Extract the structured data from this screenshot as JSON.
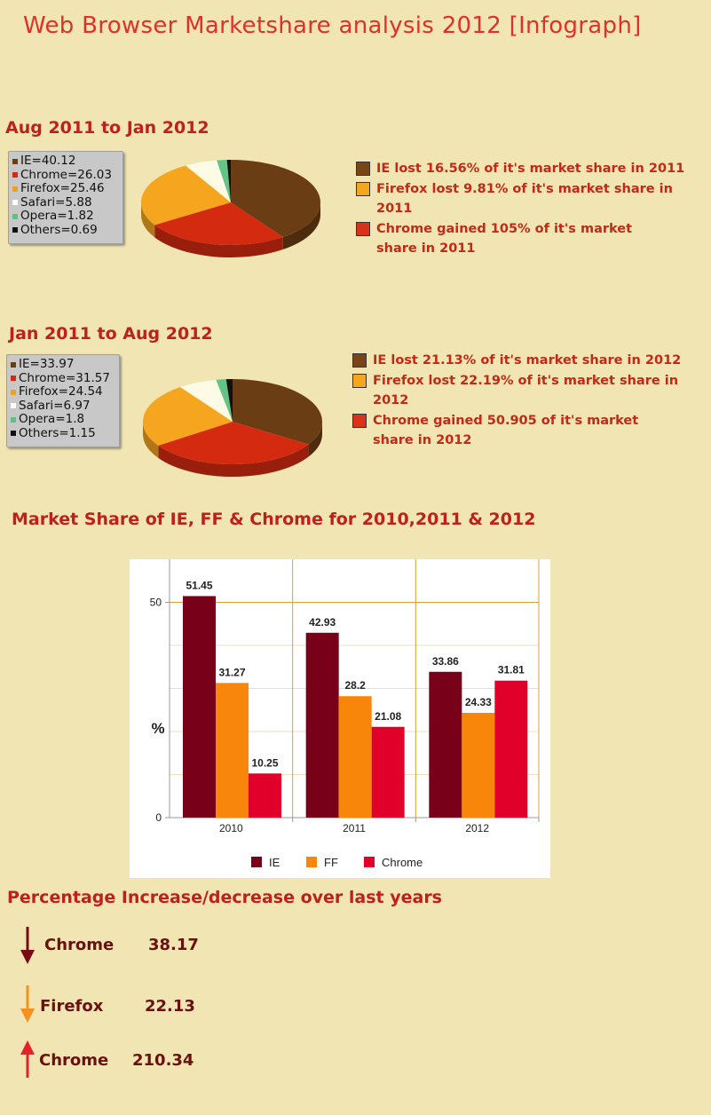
{
  "page": {
    "title": "Web Browser Marketshare analysis 2012 [Infograph]"
  },
  "sections": [
    {
      "title": "Aug 2011 to Jan 2012",
      "legend": [
        {
          "label": "IE=40.12",
          "color": "#6b3d14"
        },
        {
          "label": "Chrome=26.03",
          "color": "#d42a10"
        },
        {
          "label": "Firefox=25.46",
          "color": "#f0a020"
        },
        {
          "label": "Safari=5.88",
          "color": "#ffffff"
        },
        {
          "label": "Opera=1.82",
          "color": "#60c080"
        },
        {
          "label": "Others=0.69",
          "color": "#111111"
        }
      ],
      "notes": [
        {
          "text": "IE lost 16.56% of it's market share in 2011",
          "color": "#7a4516"
        },
        {
          "text": "Firefox lost 9.81% of it's market share in 2011",
          "color": "#f2a71e"
        },
        {
          "text": "Chrome gained 105% of it's market share in 2011",
          "color": "#d8341a"
        }
      ]
    },
    {
      "title": "Jan 2011 to Aug 2012",
      "legend": [
        {
          "label": "IE=33.97",
          "color": "#6b3d14"
        },
        {
          "label": "Chrome=31.57",
          "color": "#d42a10"
        },
        {
          "label": "Firefox=24.54",
          "color": "#f0a020"
        },
        {
          "label": "Safari=6.97",
          "color": "#ffffff"
        },
        {
          "label": "Opera=1.8",
          "color": "#60c080"
        },
        {
          "label": "Others=1.15",
          "color": "#111111"
        }
      ],
      "notes": [
        {
          "text": "IE lost 21.13% of it's market share in 2012",
          "color": "#7a4516"
        },
        {
          "text": "Firefox lost 22.19% of it's market share in 2012",
          "color": "#f2a71e"
        },
        {
          "text": "Chrome gained 50.905 of it's market share in 2012",
          "color": "#d8341a"
        }
      ]
    }
  ],
  "bar_section_title": "Market Share of IE, FF & Chrome for 2010,2011 & 2012",
  "change_title": "Percentage Increase/decrease over last years",
  "changes": [
    {
      "name": "Chrome",
      "value": "38.17",
      "direction": "down",
      "color": "#7a0a14"
    },
    {
      "name": "Firefox",
      "value": "22.13",
      "direction": "down",
      "color": "#f7901e"
    },
    {
      "name": "Chrome",
      "value": "210.34",
      "direction": "up",
      "color": "#e8202a"
    }
  ],
  "chart_data": [
    {
      "type": "pie",
      "title": "Aug 2011 to Jan 2012",
      "categories": [
        "IE",
        "Chrome",
        "Firefox",
        "Safari",
        "Opera",
        "Others"
      ],
      "values": [
        40.12,
        26.03,
        25.46,
        5.88,
        1.82,
        0.69
      ],
      "colors": [
        "#6b3d14",
        "#d42a10",
        "#f5a51e",
        "#fdfbe6",
        "#63c486",
        "#111111"
      ]
    },
    {
      "type": "pie",
      "title": "Jan 2011 to Aug 2012",
      "categories": [
        "IE",
        "Chrome",
        "Firefox",
        "Safari",
        "Opera",
        "Others"
      ],
      "values": [
        33.97,
        31.57,
        24.54,
        6.97,
        1.8,
        1.15
      ],
      "colors": [
        "#6b3d14",
        "#d42a10",
        "#f5a51e",
        "#fdfbe6",
        "#63c486",
        "#111111"
      ]
    },
    {
      "type": "bar",
      "title": "Market Share of IE, FF & Chrome for 2010,2011 & 2012",
      "categories": [
        "2010",
        "2011",
        "2012"
      ],
      "series": [
        {
          "name": "IE",
          "values": [
            51.45,
            42.93,
            33.86
          ],
          "color": "#780018"
        },
        {
          "name": "FF",
          "values": [
            31.27,
            28.2,
            24.33
          ],
          "color": "#f7860a"
        },
        {
          "name": "Chrome",
          "values": [
            10.25,
            21.08,
            31.81
          ],
          "color": "#e0002a"
        }
      ],
      "ylabel": "%",
      "ylim": [
        0,
        60
      ],
      "yticks": [
        0,
        50
      ],
      "grid": true,
      "legend": "bottom"
    }
  ]
}
